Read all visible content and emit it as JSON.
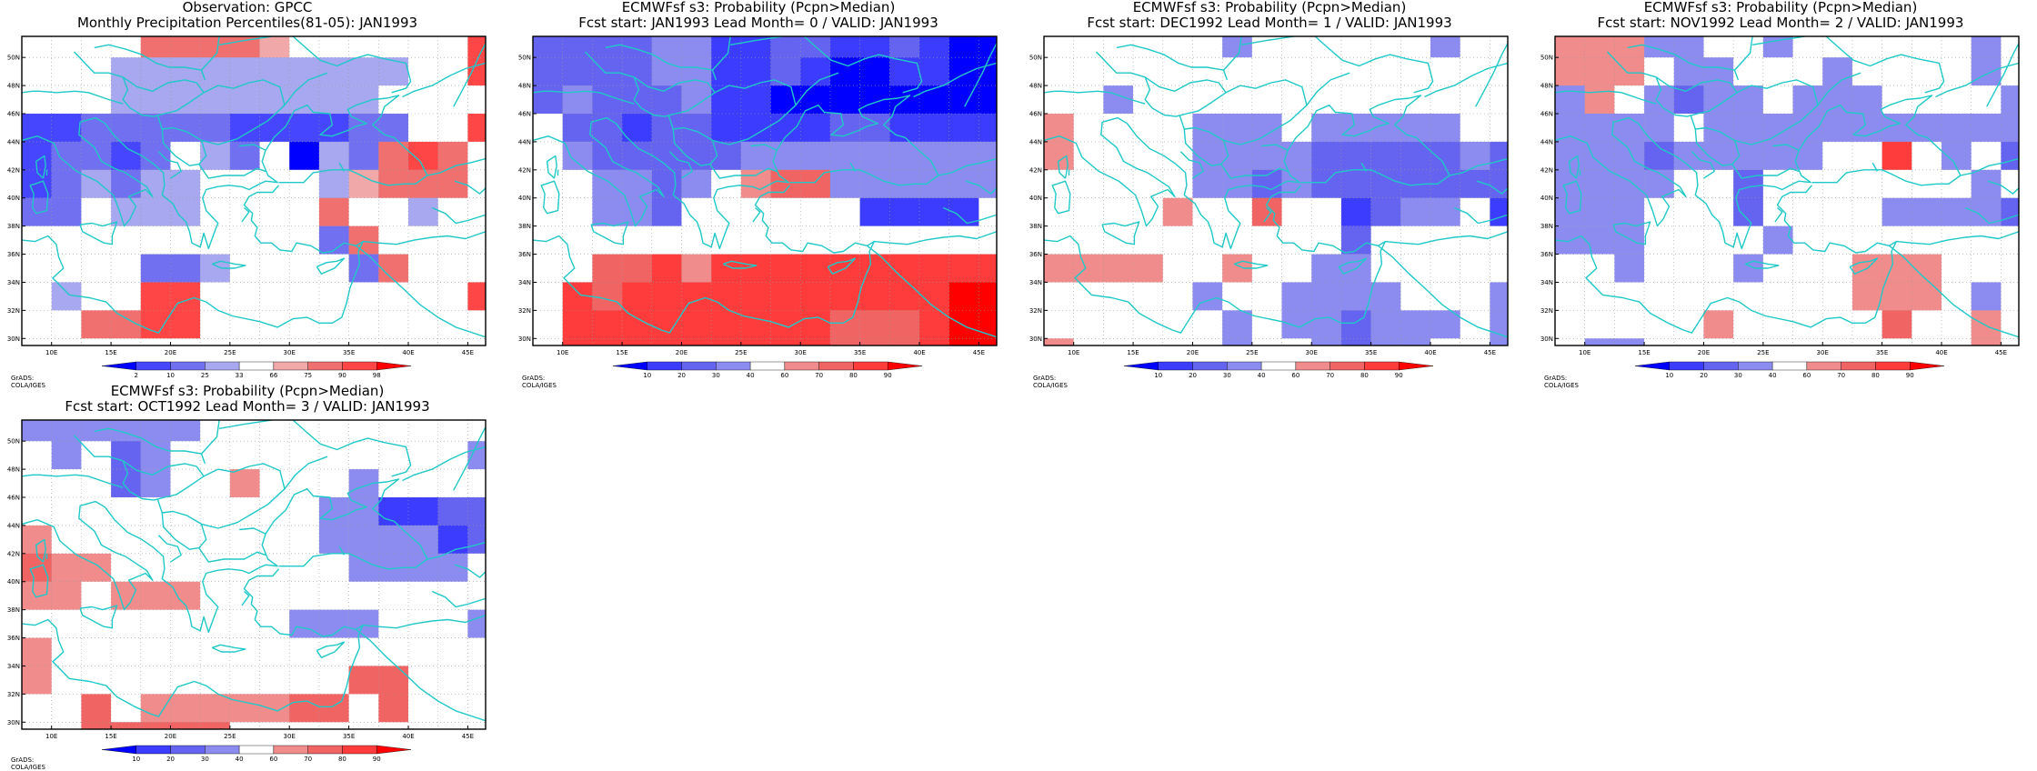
{
  "figure": {
    "grid_lon_edges": [
      7.5,
      10,
      12.5,
      15,
      17.5,
      20,
      22.5,
      25,
      27.5,
      30,
      32.5,
      35,
      37.5,
      40,
      42.5,
      45,
      46.5
    ],
    "grid_lat_edges": [
      51.5,
      50,
      48,
      46,
      44,
      42,
      40,
      38,
      36,
      34,
      32,
      30,
      29.5
    ],
    "coastline_color": "#20c8c8"
  },
  "panels": [
    {
      "id": "obs",
      "title_line1": "Observation: GPCC",
      "title_line2": "Monthly Precipitation Percentiles(81-05): JAN1993",
      "credit": "GrADS: COLA/IGES",
      "colorbar_labels": [
        "2",
        "10",
        "25",
        "33",
        "66",
        "75",
        "90",
        "98"
      ],
      "colorbar_colors": [
        "#0000ff",
        "#4646ff",
        "#7070f0",
        "#a8a8f0",
        "#ffffff",
        "#f0a8a8",
        "#f07070",
        "#ff4646",
        "#ff0000"
      ],
      "grid_levels": [
        [
          4,
          4,
          4,
          4,
          6,
          6,
          6,
          6,
          5,
          4,
          4,
          4,
          4,
          4,
          4,
          7
        ],
        [
          4,
          4,
          4,
          3,
          3,
          3,
          3,
          3,
          3,
          3,
          3,
          3,
          3,
          4,
          4,
          7
        ],
        [
          4,
          4,
          4,
          3,
          3,
          3,
          3,
          3,
          3,
          3,
          3,
          3,
          4,
          4,
          4,
          4
        ],
        [
          1,
          1,
          2,
          2,
          2,
          2,
          2,
          1,
          1,
          1,
          1,
          2,
          2,
          4,
          4,
          7
        ],
        [
          1,
          2,
          2,
          1,
          2,
          4,
          3,
          2,
          4,
          0,
          3,
          2,
          6,
          7,
          6,
          4
        ],
        [
          1,
          2,
          3,
          2,
          3,
          3,
          4,
          4,
          4,
          4,
          3,
          5,
          6,
          6,
          6,
          4
        ],
        [
          2,
          2,
          4,
          3,
          3,
          3,
          4,
          4,
          4,
          4,
          6,
          4,
          4,
          3,
          4,
          4
        ],
        [
          4,
          4,
          4,
          4,
          4,
          4,
          4,
          4,
          4,
          4,
          2,
          6,
          4,
          4,
          4,
          4
        ],
        [
          4,
          4,
          4,
          4,
          2,
          2,
          3,
          4,
          4,
          4,
          4,
          2,
          6,
          4,
          4,
          4
        ],
        [
          4,
          3,
          4,
          4,
          7,
          7,
          4,
          4,
          4,
          4,
          4,
          4,
          4,
          4,
          4,
          7
        ],
        [
          4,
          4,
          6,
          6,
          7,
          7,
          4,
          4,
          4,
          4,
          4,
          4,
          4,
          4,
          4,
          4
        ],
        [
          4,
          4,
          4,
          4,
          4,
          4,
          4,
          4,
          4,
          4,
          4,
          4,
          4,
          4,
          4,
          4
        ]
      ]
    },
    {
      "id": "lead0",
      "title_line1": "ECMWFsf s3: Probability (Pcpn>Median)",
      "title_line2": "Fcst start: JAN1993   Lead Month= 0 / VALID: JAN1993",
      "credit": "GrADS: COLA/IGES",
      "colorbar_labels": [
        "10",
        "20",
        "30",
        "40",
        "60",
        "70",
        "80",
        "90"
      ],
      "colorbar_colors": [
        "#0000ff",
        "#3c3cff",
        "#6464f0",
        "#8c8cf0",
        "#ffffff",
        "#f08c8c",
        "#f06464",
        "#ff3c3c",
        "#ff0000"
      ],
      "grid_levels": [
        [
          2,
          2,
          2,
          2,
          3,
          3,
          1,
          1,
          2,
          2,
          1,
          1,
          2,
          1,
          0,
          0
        ],
        [
          2,
          2,
          2,
          2,
          3,
          3,
          1,
          1,
          2,
          1,
          0,
          0,
          1,
          1,
          0,
          0
        ],
        [
          2,
          3,
          2,
          2,
          2,
          3,
          1,
          1,
          0,
          0,
          0,
          0,
          0,
          0,
          0,
          0
        ],
        [
          4,
          2,
          2,
          1,
          2,
          2,
          1,
          1,
          1,
          1,
          2,
          2,
          1,
          1,
          1,
          1
        ],
        [
          4,
          3,
          2,
          2,
          2,
          2,
          2,
          3,
          3,
          3,
          3,
          3,
          3,
          3,
          3,
          3
        ],
        [
          4,
          4,
          3,
          3,
          2,
          3,
          4,
          5,
          6,
          6,
          3,
          3,
          3,
          3,
          3,
          3
        ],
        [
          4,
          4,
          3,
          3,
          2,
          4,
          4,
          4,
          4,
          4,
          4,
          1,
          1,
          1,
          1,
          4
        ],
        [
          4,
          4,
          4,
          4,
          4,
          4,
          4,
          4,
          4,
          4,
          4,
          4,
          4,
          4,
          4,
          4
        ],
        [
          4,
          4,
          6,
          6,
          7,
          5,
          7,
          7,
          7,
          7,
          7,
          7,
          7,
          7,
          7,
          7
        ],
        [
          4,
          7,
          6,
          7,
          7,
          7,
          7,
          7,
          7,
          7,
          7,
          7,
          7,
          7,
          8,
          8
        ],
        [
          4,
          7,
          7,
          7,
          7,
          7,
          7,
          7,
          7,
          7,
          6,
          6,
          6,
          7,
          8,
          8
        ],
        [
          4,
          7,
          7,
          7,
          7,
          7,
          7,
          7,
          7,
          7,
          6,
          6,
          6,
          7,
          8,
          8
        ]
      ]
    },
    {
      "id": "lead1",
      "title_line1": "ECMWFsf s3: Probability (Pcpn>Median)",
      "title_line2": "Fcst start: DEC1992   Lead Month= 1 / VALID: JAN1993",
      "credit": "GrADS: COLA/IGES",
      "colorbar_labels": [
        "10",
        "20",
        "30",
        "40",
        "60",
        "70",
        "80",
        "90"
      ],
      "colorbar_colors": [
        "#0000ff",
        "#3c3cff",
        "#6464f0",
        "#8c8cf0",
        "#ffffff",
        "#f08c8c",
        "#f06464",
        "#ff3c3c",
        "#ff0000"
      ],
      "grid_levels": [
        [
          4,
          4,
          4,
          4,
          4,
          4,
          3,
          4,
          4,
          4,
          4,
          4,
          4,
          3,
          4,
          4
        ],
        [
          4,
          4,
          4,
          4,
          4,
          4,
          4,
          4,
          4,
          4,
          4,
          4,
          4,
          4,
          4,
          4
        ],
        [
          4,
          4,
          3,
          4,
          4,
          4,
          4,
          4,
          4,
          4,
          4,
          4,
          4,
          4,
          4,
          4
        ],
        [
          5,
          4,
          4,
          4,
          4,
          3,
          3,
          3,
          4,
          3,
          3,
          3,
          3,
          3,
          4,
          4
        ],
        [
          5,
          4,
          4,
          4,
          4,
          3,
          3,
          3,
          3,
          2,
          2,
          2,
          2,
          2,
          3,
          2
        ],
        [
          4,
          4,
          4,
          4,
          4,
          3,
          3,
          2,
          3,
          2,
          2,
          2,
          2,
          2,
          2,
          2
        ],
        [
          4,
          4,
          4,
          4,
          5,
          4,
          4,
          6,
          4,
          4,
          1,
          2,
          3,
          3,
          4,
          1
        ],
        [
          4,
          4,
          4,
          4,
          4,
          4,
          4,
          4,
          4,
          4,
          2,
          4,
          4,
          4,
          4,
          4
        ],
        [
          5,
          5,
          5,
          5,
          4,
          4,
          5,
          4,
          4,
          3,
          3,
          4,
          4,
          4,
          4,
          4
        ],
        [
          4,
          4,
          4,
          4,
          4,
          3,
          4,
          4,
          3,
          3,
          3,
          3,
          4,
          4,
          4,
          3
        ],
        [
          4,
          4,
          4,
          4,
          4,
          4,
          3,
          4,
          3,
          3,
          2,
          3,
          3,
          3,
          4,
          3
        ],
        [
          5,
          4,
          4,
          4,
          4,
          4,
          3,
          4,
          4,
          3,
          2,
          3,
          3,
          4,
          4,
          3
        ]
      ]
    },
    {
      "id": "lead2",
      "title_line1": "ECMWFsf s3: Probability (Pcpn>Median)",
      "title_line2": "Fcst start: NOV1992   Lead Month= 2 / VALID: JAN1993",
      "credit": "GrADS: COLA/IGES",
      "colorbar_labels": [
        "10",
        "20",
        "30",
        "40",
        "60",
        "70",
        "80",
        "90"
      ],
      "colorbar_colors": [
        "#0000ff",
        "#3c3cff",
        "#6464f0",
        "#8c8cf0",
        "#ffffff",
        "#f08c8c",
        "#f06464",
        "#ff3c3c",
        "#ff0000"
      ],
      "grid_levels": [
        [
          5,
          5,
          5,
          3,
          3,
          4,
          4,
          3,
          4,
          4,
          4,
          4,
          4,
          4,
          3,
          4
        ],
        [
          5,
          5,
          5,
          4,
          3,
          3,
          4,
          4,
          4,
          3,
          4,
          4,
          4,
          4,
          3,
          4
        ],
        [
          3,
          5,
          4,
          3,
          2,
          3,
          3,
          4,
          3,
          3,
          3,
          4,
          4,
          4,
          4,
          3
        ],
        [
          3,
          3,
          3,
          3,
          4,
          3,
          3,
          3,
          3,
          3,
          3,
          3,
          3,
          3,
          3,
          3
        ],
        [
          3,
          3,
          3,
          2,
          3,
          3,
          3,
          3,
          3,
          4,
          4,
          7,
          4,
          3,
          4,
          2
        ],
        [
          3,
          3,
          3,
          3,
          4,
          4,
          2,
          4,
          4,
          4,
          4,
          4,
          4,
          4,
          3,
          4
        ],
        [
          3,
          3,
          3,
          4,
          4,
          4,
          2,
          4,
          4,
          4,
          4,
          3,
          3,
          3,
          3,
          2
        ],
        [
          3,
          3,
          3,
          4,
          4,
          4,
          4,
          3,
          4,
          4,
          4,
          4,
          4,
          4,
          4,
          4
        ],
        [
          4,
          4,
          3,
          4,
          4,
          4,
          3,
          4,
          4,
          4,
          5,
          5,
          5,
          4,
          4,
          4
        ],
        [
          4,
          4,
          4,
          4,
          4,
          4,
          4,
          4,
          4,
          4,
          5,
          5,
          5,
          4,
          3,
          4
        ],
        [
          4,
          4,
          4,
          4,
          4,
          5,
          4,
          4,
          4,
          4,
          4,
          6,
          4,
          4,
          5,
          4
        ],
        [
          4,
          3,
          3,
          4,
          4,
          4,
          4,
          4,
          4,
          4,
          4,
          4,
          4,
          4,
          5,
          4
        ]
      ]
    },
    {
      "id": "lead3",
      "title_line1": "ECMWFsf s3: Probability (Pcpn>Median)",
      "title_line2": "Fcst start: OCT1992   Lead Month= 3 / VALID: JAN1993",
      "credit": "GrADS: COLA/IGES",
      "colorbar_labels": [
        "10",
        "20",
        "30",
        "40",
        "60",
        "70",
        "80",
        "90"
      ],
      "colorbar_colors": [
        "#0000ff",
        "#3c3cff",
        "#6464f0",
        "#8c8cf0",
        "#ffffff",
        "#f08c8c",
        "#f06464",
        "#ff3c3c",
        "#ff0000"
      ],
      "grid_levels": [
        [
          3,
          3,
          3,
          3,
          3,
          3,
          4,
          4,
          4,
          4,
          4,
          4,
          4,
          4,
          4,
          4
        ],
        [
          4,
          3,
          4,
          2,
          3,
          4,
          4,
          4,
          4,
          4,
          4,
          4,
          4,
          4,
          4,
          3
        ],
        [
          4,
          4,
          4,
          2,
          3,
          4,
          4,
          5,
          4,
          4,
          4,
          3,
          4,
          4,
          4,
          4
        ],
        [
          4,
          4,
          4,
          4,
          4,
          4,
          4,
          4,
          4,
          4,
          3,
          3,
          1,
          1,
          2,
          2
        ],
        [
          5,
          4,
          4,
          4,
          4,
          4,
          4,
          4,
          4,
          4,
          3,
          3,
          3,
          3,
          1,
          2
        ],
        [
          6,
          5,
          5,
          4,
          4,
          4,
          4,
          4,
          4,
          4,
          4,
          3,
          3,
          3,
          3,
          4
        ],
        [
          5,
          5,
          4,
          5,
          5,
          5,
          4,
          4,
          4,
          4,
          4,
          4,
          4,
          4,
          4,
          4
        ],
        [
          4,
          4,
          4,
          4,
          4,
          4,
          4,
          4,
          4,
          3,
          3,
          3,
          4,
          4,
          4,
          3
        ],
        [
          5,
          4,
          4,
          4,
          4,
          4,
          4,
          4,
          4,
          4,
          4,
          4,
          4,
          4,
          4,
          4
        ],
        [
          5,
          4,
          4,
          4,
          4,
          4,
          4,
          4,
          4,
          4,
          4,
          6,
          6,
          4,
          4,
          4
        ],
        [
          4,
          4,
          6,
          4,
          5,
          5,
          5,
          5,
          5,
          6,
          6,
          4,
          6,
          4,
          4,
          4
        ],
        [
          4,
          4,
          6,
          6,
          6,
          6,
          6,
          4,
          4,
          4,
          4,
          4,
          4,
          4,
          4,
          4
        ]
      ]
    }
  ],
  "axes": {
    "lat_labels": [
      "50N",
      "48N",
      "46N",
      "44N",
      "42N",
      "40N",
      "38N",
      "36N",
      "34N",
      "32N",
      "30N"
    ],
    "lat_values": [
      50,
      48,
      46,
      44,
      42,
      40,
      38,
      36,
      34,
      32,
      30
    ],
    "lon_labels": [
      "10E",
      "15E",
      "20E",
      "25E",
      "30E",
      "35E",
      "40E",
      "45E"
    ],
    "lon_values": [
      10,
      15,
      20,
      25,
      30,
      35,
      40,
      45
    ]
  }
}
